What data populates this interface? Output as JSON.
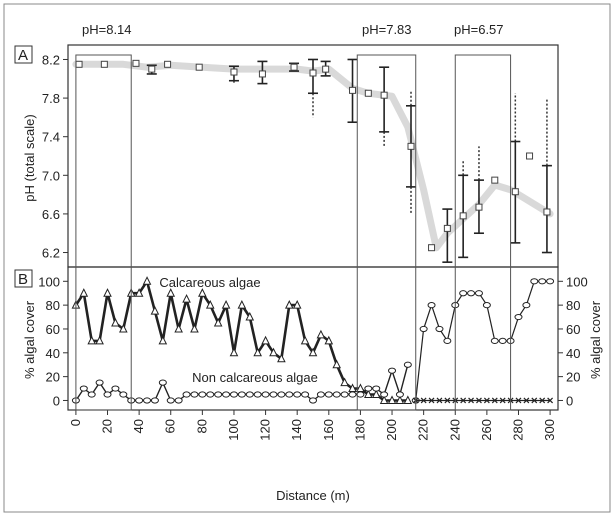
{
  "figure": {
    "ph_annotations": [
      "pH=8.14",
      "pH=7.83",
      "pH=6.57"
    ],
    "colors": {
      "ph_band": "#d9d9d9",
      "line": "#222222",
      "box": "#555555"
    }
  },
  "chart_data": [
    {
      "type": "line",
      "panel_label": "A",
      "ylabel": "pH (total scale)",
      "xlabel": "",
      "xlim": [
        -5,
        305
      ],
      "ylim": [
        6.05,
        8.35
      ],
      "yticks": [
        "8.2",
        "7.8",
        "7.4",
        "7.0",
        "6.6",
        "6.2"
      ],
      "grid": false,
      "highlight_ranges_x": [
        [
          0,
          35
        ],
        [
          178,
          215
        ],
        [
          240,
          275
        ]
      ],
      "series": [
        {
          "mean_trend": [
            [
              0,
              8.15
            ],
            [
              15,
              8.15
            ],
            [
              30,
              8.15
            ],
            [
              45,
              8.12
            ],
            [
              60,
              8.14
            ],
            [
              80,
              8.12
            ],
            [
              100,
              8.1
            ],
            [
              120,
              8.1
            ],
            [
              140,
              8.1
            ],
            [
              150,
              8.08
            ],
            [
              160,
              8.1
            ],
            [
              175,
              7.9
            ],
            [
              185,
              7.85
            ],
            [
              200,
              7.82
            ],
            [
              210,
              7.5
            ],
            [
              220,
              6.85
            ],
            [
              228,
              6.25
            ],
            [
              235,
              6.4
            ],
            [
              245,
              6.55
            ],
            [
              255,
              6.7
            ],
            [
              265,
              6.9
            ],
            [
              275,
              6.85
            ],
            [
              285,
              6.75
            ],
            [
              300,
              6.6
            ]
          ],
          "points": [
            {
              "x": 2,
              "y": 8.15
            },
            {
              "x": 18,
              "y": 8.15
            },
            {
              "x": 38,
              "y": 8.16
            },
            {
              "x": 48,
              "y": 8.1,
              "low": 8.05,
              "high": 8.14
            },
            {
              "x": 58,
              "y": 8.15
            },
            {
              "x": 78,
              "y": 8.12
            },
            {
              "x": 100,
              "y": 8.07,
              "low": 7.98,
              "high": 8.13,
              "dot_low": 7.95
            },
            {
              "x": 118,
              "y": 8.05,
              "low": 7.95,
              "high": 8.18
            },
            {
              "x": 138,
              "y": 8.12,
              "low": 8.08,
              "high": 8.16
            },
            {
              "x": 150,
              "y": 8.06,
              "low": 7.85,
              "high": 8.2,
              "dot_low": 7.6
            },
            {
              "x": 158,
              "y": 8.1,
              "low": 8.03,
              "high": 8.18
            },
            {
              "x": 175,
              "y": 7.88,
              "low": 7.55,
              "high": 8.2
            },
            {
              "x": 185,
              "y": 7.85
            },
            {
              "x": 195,
              "y": 7.83,
              "low": 7.45,
              "high": 8.12,
              "dot_low": 7.3
            },
            {
              "x": 212,
              "y": 7.3,
              "low": 6.88,
              "high": 7.72,
              "dot_low": 6.6,
              "dot_high": 7.88
            },
            {
              "x": 225,
              "y": 6.25
            },
            {
              "x": 235,
              "y": 6.45,
              "low": 6.1,
              "high": 6.65,
              "dot_low": 6.1
            },
            {
              "x": 245,
              "y": 6.58,
              "low": 6.15,
              "high": 7.0,
              "dot_high": 7.15
            },
            {
              "x": 255,
              "y": 6.67,
              "low": 6.4,
              "high": 6.95,
              "dot_high": 7.3
            },
            {
              "x": 265,
              "y": 6.95
            },
            {
              "x": 278,
              "y": 6.83,
              "low": 6.3,
              "high": 7.35,
              "dot_high": 7.85
            },
            {
              "x": 287,
              "y": 7.2
            },
            {
              "x": 298,
              "y": 6.62,
              "low": 6.2,
              "high": 7.1,
              "dot_high": 7.8
            }
          ]
        }
      ]
    },
    {
      "type": "line",
      "panel_label": "B",
      "xlabel": "Distance (m)",
      "ylabel": "% algal cover",
      "ylabel_right": "% algal cover",
      "xlim": [
        -5,
        305
      ],
      "ylim": [
        -8,
        112
      ],
      "xticks": [
        "0",
        "20",
        "40",
        "60",
        "80",
        "100",
        "120",
        "140",
        "160",
        "180",
        "200",
        "220",
        "240",
        "260",
        "280",
        "300"
      ],
      "yticks": [
        "100",
        "80",
        "60",
        "40",
        "20",
        "0"
      ],
      "grid": false,
      "highlight_ranges_x": [
        [
          0,
          35
        ],
        [
          178,
          215
        ],
        [
          240,
          275
        ]
      ],
      "series": [
        {
          "name": "Calcareous algae",
          "marker": "triangle",
          "x": [
            0,
            5,
            10,
            15,
            20,
            25,
            30,
            35,
            40,
            45,
            50,
            55,
            60,
            65,
            70,
            75,
            80,
            85,
            90,
            95,
            100,
            105,
            110,
            115,
            120,
            125,
            130,
            135,
            140,
            145,
            150,
            155,
            160,
            165,
            170,
            175,
            180,
            185,
            190,
            195,
            200,
            205,
            210
          ],
          "y": [
            80,
            90,
            50,
            50,
            90,
            65,
            60,
            90,
            90,
            100,
            75,
            50,
            90,
            60,
            85,
            60,
            90,
            80,
            65,
            80,
            40,
            80,
            70,
            40,
            50,
            40,
            35,
            80,
            80,
            50,
            40,
            55,
            50,
            30,
            15,
            10,
            10,
            5,
            5,
            0,
            0,
            0,
            0
          ]
        },
        {
          "name": "Non calcareous algae",
          "marker": "circle",
          "x": [
            0,
            5,
            10,
            15,
            20,
            25,
            30,
            35,
            40,
            45,
            50,
            55,
            60,
            65,
            70,
            75,
            80,
            85,
            90,
            95,
            100,
            105,
            110,
            115,
            120,
            125,
            130,
            135,
            140,
            145,
            150,
            155,
            160,
            165,
            170,
            175,
            180,
            185,
            190,
            195,
            200,
            205,
            210
          ],
          "y": [
            0,
            10,
            5,
            15,
            5,
            10,
            5,
            0,
            0,
            0,
            0,
            15,
            0,
            0,
            5,
            5,
            5,
            5,
            5,
            5,
            5,
            5,
            5,
            5,
            5,
            5,
            5,
            5,
            5,
            5,
            0,
            5,
            5,
            5,
            5,
            5,
            5,
            10,
            10,
            5,
            25,
            5,
            30
          ]
        },
        {
          "name": "",
          "marker": "circle",
          "x": [
            215,
            220,
            225,
            230,
            235,
            240,
            245,
            250,
            255,
            260,
            265,
            270,
            275,
            280,
            285,
            290,
            295,
            300
          ],
          "y": [
            0,
            60,
            80,
            60,
            50,
            80,
            90,
            90,
            90,
            80,
            50,
            50,
            50,
            70,
            80,
            100,
            100,
            100
          ]
        },
        {
          "name": "",
          "marker": "x",
          "x": [
            215,
            220,
            225,
            230,
            235,
            240,
            245,
            250,
            255,
            260,
            265,
            270,
            275,
            280,
            285,
            290,
            295,
            300
          ],
          "y": [
            0,
            0,
            0,
            0,
            0,
            0,
            0,
            0,
            0,
            0,
            0,
            0,
            0,
            0,
            0,
            0,
            0,
            0
          ]
        }
      ]
    }
  ]
}
